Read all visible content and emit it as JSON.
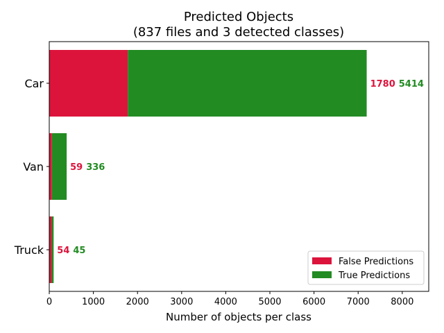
{
  "chart_data": {
    "type": "bar",
    "orientation": "horizontal",
    "stacked": true,
    "title": "Predicted Objects",
    "subtitle": "(837 files and 3 detected classes)",
    "xlabel": "Number of objects per class",
    "ylabel": "",
    "xlim": [
      0,
      8600
    ],
    "xticks": [
      0,
      1000,
      2000,
      3000,
      4000,
      5000,
      6000,
      7000,
      8000
    ],
    "categories": [
      "Car",
      "Van",
      "Truck"
    ],
    "series": [
      {
        "name": "False Predictions",
        "color": "#DC143C",
        "values": [
          1780,
          59,
          54
        ]
      },
      {
        "name": "True Predictions",
        "color": "#228B22",
        "values": [
          5414,
          336,
          45
        ]
      }
    ],
    "legend": {
      "placement": "lower-right"
    },
    "grid": false
  }
}
